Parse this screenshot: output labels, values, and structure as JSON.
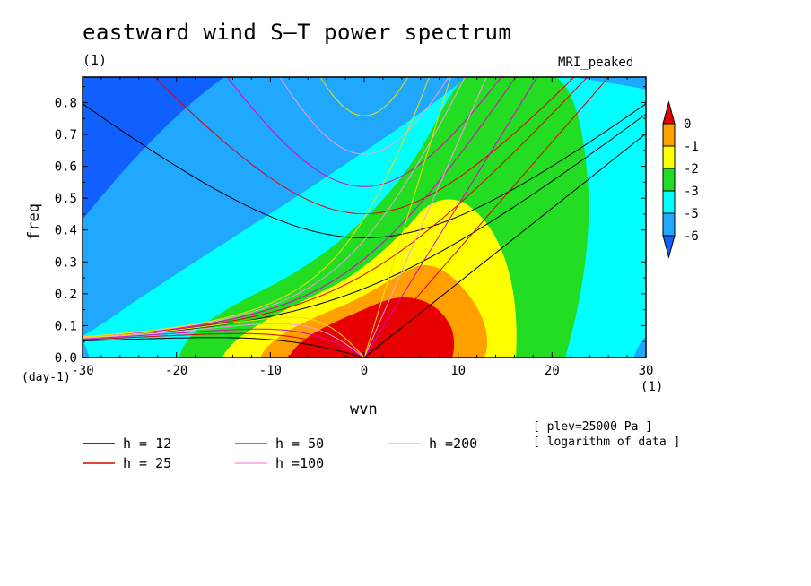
{
  "title": "eastward wind S–T power spectrum",
  "units_top_left": "(1)",
  "model_label": "MRI_peaked",
  "x_unit_bottom_left": "(day-1)",
  "x_unit_bottom_right": "(1)",
  "notes": [
    "[ plev=25000 Pa ]",
    "[ logarithm of data ]"
  ],
  "chart_data": {
    "type": "heatmap",
    "title": "eastward wind S–T power spectrum",
    "xlabel": "wvn",
    "ylabel": "freq",
    "xlim": [
      -30,
      30
    ],
    "ylim": [
      0,
      0.88
    ],
    "xticks": [
      "-30",
      "-20",
      "-10",
      "0",
      "10",
      "20",
      "30"
    ],
    "yticks": [
      "0.0",
      "0.1",
      "0.2",
      "0.3",
      "0.4",
      "0.5",
      "0.6",
      "0.7",
      "0.8"
    ],
    "colorbar": {
      "levels": [
        "0",
        "-1",
        "-2",
        "-3",
        "-5",
        "-6"
      ],
      "colors": [
        "#e80000",
        "#ff9f00",
        "#ffff00",
        "#22dd22",
        "#00ffff",
        "#20a8ff",
        "#1060ff"
      ]
    },
    "dispersion_curves": [
      {
        "label": "h = 12",
        "color": "#000000",
        "equivalent_depth": 12
      },
      {
        "label": "h = 25",
        "color": "#e00000",
        "equivalent_depth": 25
      },
      {
        "label": "h = 50",
        "color": "#e000c0",
        "equivalent_depth": 50
      },
      {
        "label": "h =100",
        "color": "#f0a0e0",
        "equivalent_depth": 100
      },
      {
        "label": "h =200",
        "color": "#f0e000",
        "equivalent_depth": 200
      }
    ]
  }
}
